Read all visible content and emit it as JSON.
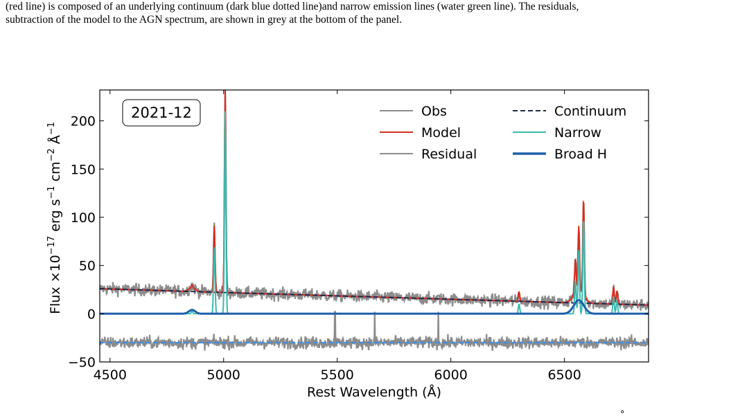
{
  "caption": {
    "line1": "(red line) is composed of an underlying continuum (dark blue dotted line)and narrow emission lines (water green line). The residuals,",
    "line2": "subtraction of the model to the AGN spectrum, are shown in grey at the bottom of the panel."
  },
  "footer_mark": "°",
  "chart_data": {
    "type": "line",
    "annotation": "2021-12",
    "xlabel": "Rest Wavelength (Å)",
    "ylabel_parts": {
      "prefix": "Flux ×10",
      "exp1": "−17",
      "unit1": " erg s",
      "exp2": "−1",
      "unit2": " cm",
      "exp3": "−2",
      "unit3": " Å",
      "exp4": "−1"
    },
    "xlim": [
      4455,
      6870
    ],
    "ylim": [
      -50,
      232
    ],
    "x_ticks": [
      4500,
      5000,
      5500,
      6000,
      6500
    ],
    "y_ticks": [
      -50,
      0,
      50,
      100,
      150,
      200
    ],
    "x_tick_labels": [
      "4500",
      "5000",
      "5500",
      "6000",
      "6500"
    ],
    "y_tick_labels": [
      "−50",
      "0",
      "50",
      "100",
      "150",
      "200"
    ],
    "grid": false,
    "legend_position": "top-right",
    "legend": [
      {
        "label": "Obs",
        "color": "#8c8c8c",
        "style": "solid"
      },
      {
        "label": "Continuum",
        "color": "#1b2a4a",
        "style": "dashed"
      },
      {
        "label": "Model",
        "color": "#d62d20",
        "style": "solid"
      },
      {
        "label": "Narrow",
        "color": "#3bbab0",
        "style": "solid"
      },
      {
        "label": "Residual",
        "color": "#8c8c8c",
        "style": "solid"
      },
      {
        "label": "Broad H",
        "color": "#1f5faa",
        "style": "solid"
      }
    ],
    "series": [
      {
        "name": "Continuum",
        "color": "#1b2a4a",
        "x": [
          4455,
          5000,
          5500,
          6000,
          6500,
          6870
        ],
        "y": [
          26,
          22,
          18.5,
          15,
          11.5,
          9
        ]
      },
      {
        "name": "Residual",
        "color": "#8c8c8c",
        "baseline": -30,
        "x": [
          4455,
          6870
        ],
        "y": [
          -30,
          -30
        ]
      },
      {
        "name": "Narrow",
        "color": "#3bbab0",
        "lines": [
          {
            "x": 4861,
            "peak": 3
          },
          {
            "x": 4959,
            "peak": 69
          },
          {
            "x": 5007,
            "peak": 210
          },
          {
            "x": 6300,
            "peak": 10
          },
          {
            "x": 6548,
            "peak": 35
          },
          {
            "x": 6563,
            "peak": 66
          },
          {
            "x": 6584,
            "peak": 100
          },
          {
            "x": 6716,
            "peak": 18
          },
          {
            "x": 6731,
            "peak": 14
          }
        ]
      },
      {
        "name": "Broad H",
        "color": "#1f5faa",
        "components": [
          {
            "x": 4861,
            "peak": 4
          },
          {
            "x": 6563,
            "peak": 14
          }
        ]
      },
      {
        "name": "Model",
        "color": "#d62d20",
        "peaks": [
          {
            "x": 4861,
            "y": 31
          },
          {
            "x": 4959,
            "y": 89
          },
          {
            "x": 5007,
            "y": 228
          },
          {
            "x": 6300,
            "y": 22
          },
          {
            "x": 6548,
            "y": 48
          },
          {
            "x": 6563,
            "y": 87
          },
          {
            "x": 6584,
            "y": 120
          },
          {
            "x": 6716,
            "y": 26
          },
          {
            "x": 6731,
            "y": 24
          }
        ]
      }
    ]
  }
}
